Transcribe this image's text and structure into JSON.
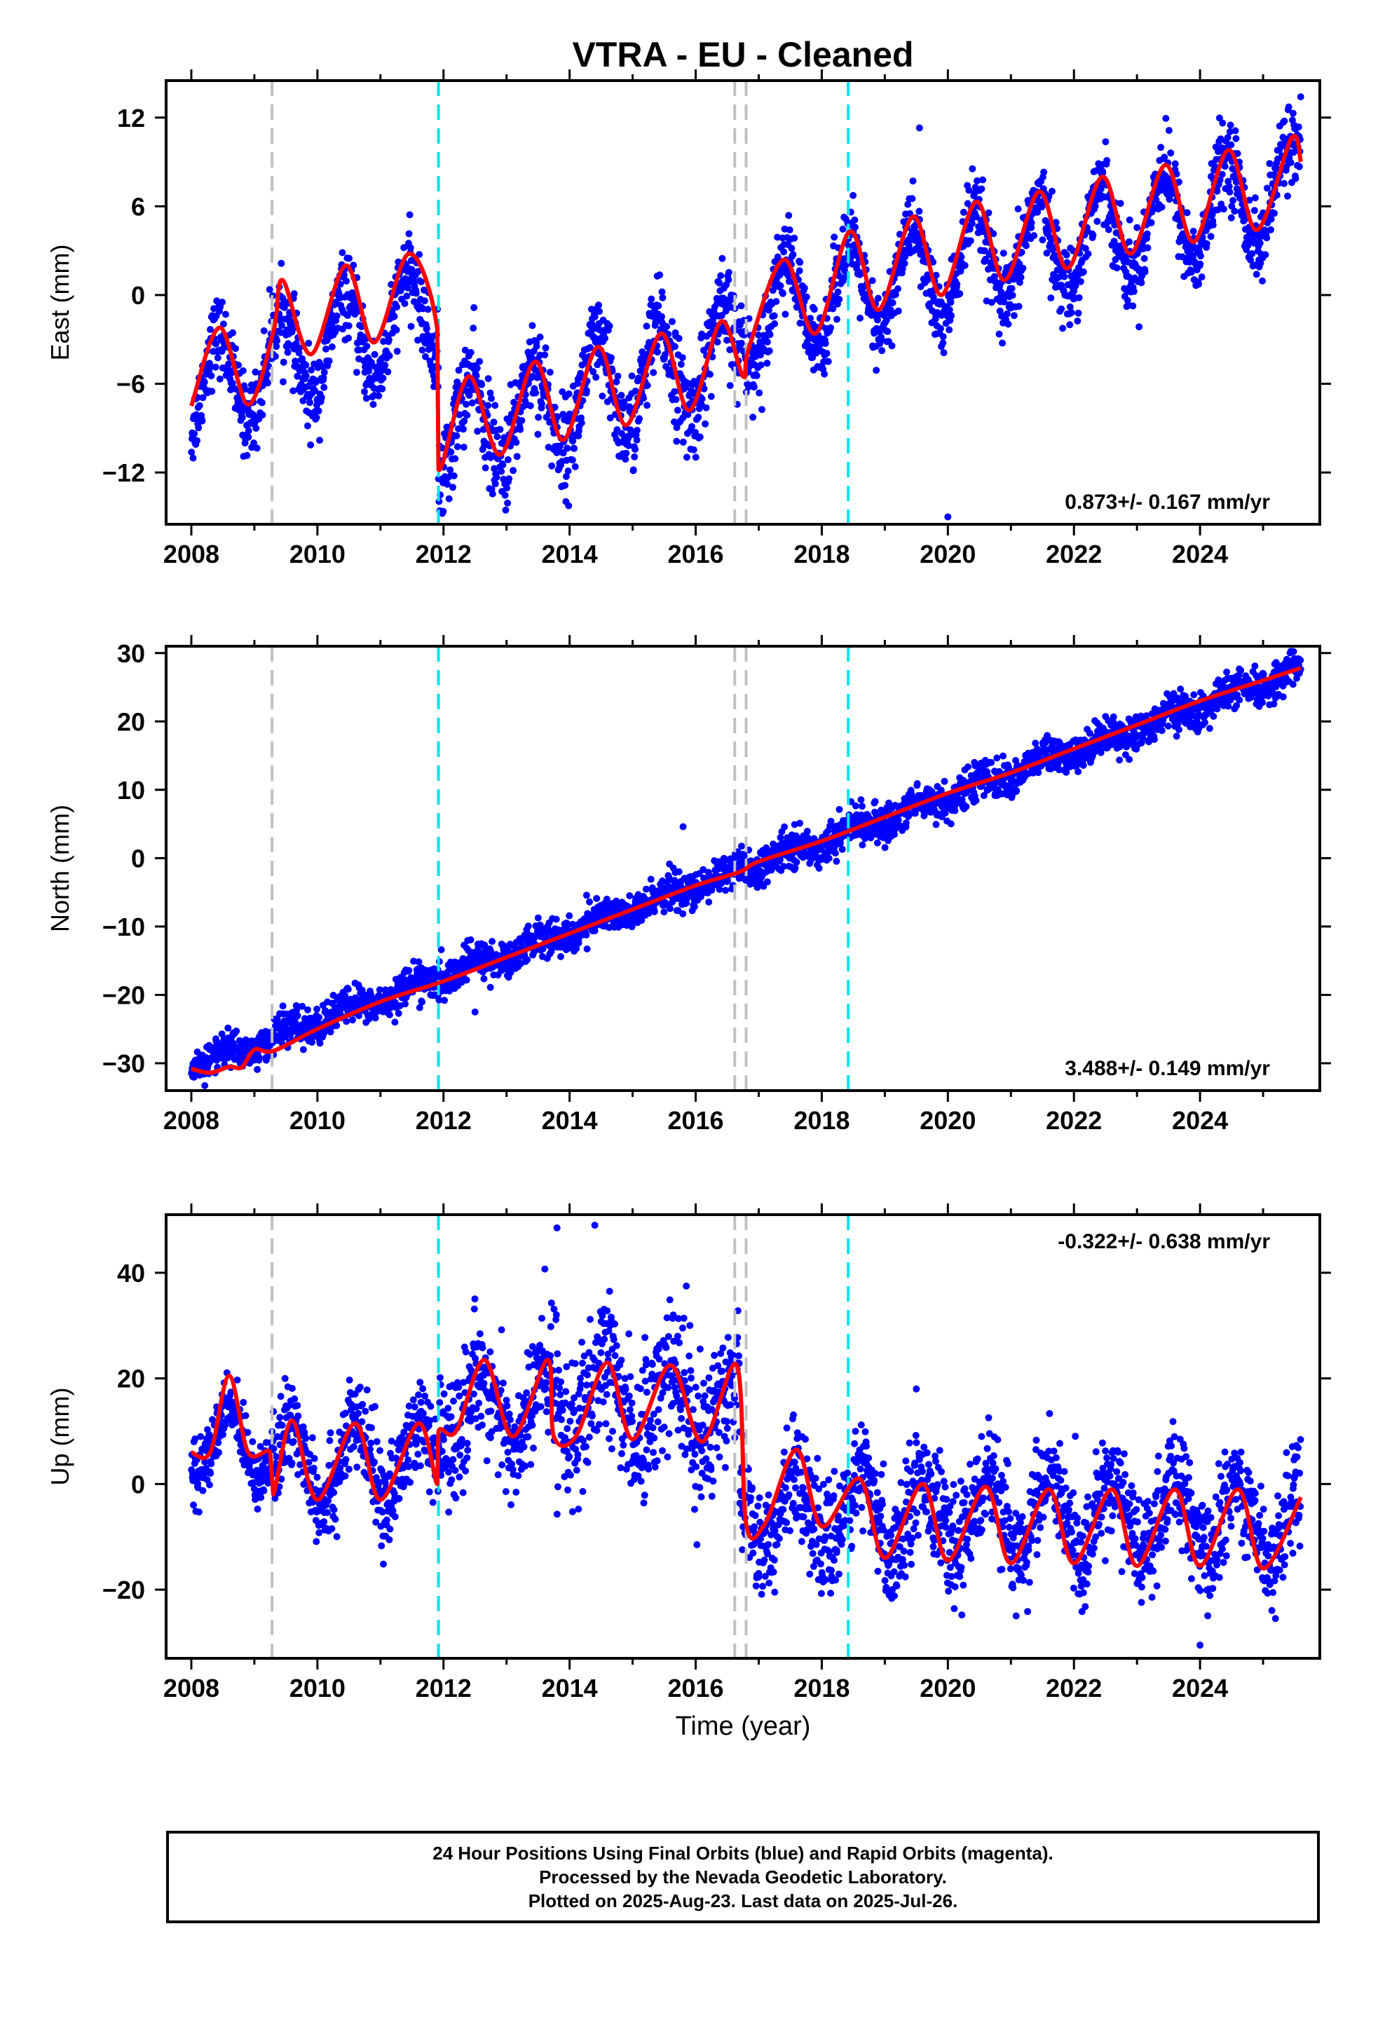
{
  "title": "VTRA  - EU - Cleaned",
  "x_axis_label": "Time (year)",
  "x_ticks": [
    "2008",
    "2010",
    "2012",
    "2014",
    "2016",
    "2018",
    "2020",
    "2022",
    "2024"
  ],
  "colors": {
    "data_points": "#0000ff",
    "model_fit": "#ff0000",
    "equipment_change": "#c0c0c0",
    "earthquake_event": "#00e5ee"
  },
  "caption": {
    "line1": "24 Hour Positions Using Final Orbits (blue) and Rapid Orbits (magenta).",
    "line2": "Processed by the Nevada Geodetic Laboratory.",
    "line3": "Plotted on 2025-Aug-23. Last data on 2025-Jul-26."
  },
  "chart_data": [
    {
      "type": "scatter",
      "panel": "east",
      "ylabel": "East (mm)",
      "xlim": [
        2007.6,
        2025.9
      ],
      "ylim": [
        -15.5,
        14.5
      ],
      "yticks": [
        -12,
        -6,
        0,
        6,
        12
      ],
      "rate_label": "0.873+/- 0.167 mm/yr",
      "rate_position": "bottom-right",
      "vertical_lines": {
        "gray_dashed": [
          2009.28,
          2016.62,
          2016.8
        ],
        "cyan_dashed": [
          2011.92,
          2018.42
        ]
      },
      "series": [
        {
          "style": "points",
          "trend_segments": [
            {
              "x0": 2008.0,
              "x1": 2011.92,
              "y0": -6.5,
              "y1": -1.0,
              "amplitude": 3.2,
              "peak_phase": 0.42,
              "scatter": 1.3
            },
            {
              "x0": 2011.92,
              "x1": 2016.7,
              "y0": -9.5,
              "y1": -4.0,
              "amplitude": 3.2,
              "peak_phase": 0.42,
              "scatter": 1.6
            },
            {
              "x0": 2016.7,
              "x1": 2025.6,
              "y0": -1.5,
              "y1": 7.3,
              "amplitude": 3.3,
              "peak_phase": 0.42,
              "scatter": 1.3
            }
          ],
          "outliers": [
            [
              2020.0,
              -15.0
            ],
            [
              2019.55,
              11.3
            ]
          ]
        },
        {
          "style": "line",
          "points": [
            [
              2008.0,
              -7.5
            ],
            [
              2008.45,
              -2.2
            ],
            [
              2008.9,
              -7.4
            ],
            [
              2009.3,
              -2.5
            ],
            [
              2009.45,
              1.0
            ],
            [
              2009.9,
              -4.0
            ],
            [
              2010.45,
              2.0
            ],
            [
              2010.9,
              -3.2
            ],
            [
              2011.45,
              2.8
            ],
            [
              2011.9,
              -2.3
            ],
            [
              2011.92,
              -11.8
            ],
            [
              2012.4,
              -5.5
            ],
            [
              2012.9,
              -10.8
            ],
            [
              2013.45,
              -4.5
            ],
            [
              2013.9,
              -9.8
            ],
            [
              2014.45,
              -3.5
            ],
            [
              2014.9,
              -8.8
            ],
            [
              2015.45,
              -2.6
            ],
            [
              2015.9,
              -7.8
            ],
            [
              2016.4,
              -1.8
            ],
            [
              2016.75,
              -5.5
            ],
            [
              2016.85,
              -3.5
            ],
            [
              2017.4,
              2.4
            ],
            [
              2017.9,
              -2.6
            ],
            [
              2018.45,
              4.3
            ],
            [
              2018.9,
              -1.0
            ],
            [
              2019.45,
              5.3
            ],
            [
              2019.9,
              0.0
            ],
            [
              2020.45,
              6.3
            ],
            [
              2020.9,
              1.0
            ],
            [
              2021.45,
              7.0
            ],
            [
              2021.9,
              1.8
            ],
            [
              2022.45,
              8.0
            ],
            [
              2022.9,
              2.8
            ],
            [
              2023.45,
              8.8
            ],
            [
              2023.9,
              3.6
            ],
            [
              2024.45,
              9.8
            ],
            [
              2024.9,
              4.4
            ],
            [
              2025.45,
              10.6
            ],
            [
              2025.6,
              9.0
            ]
          ]
        }
      ]
    },
    {
      "type": "scatter",
      "panel": "north",
      "ylabel": "North (mm)",
      "xlim": [
        2007.6,
        2025.9
      ],
      "ylim": [
        -34,
        31
      ],
      "yticks": [
        -30,
        -20,
        -10,
        0,
        10,
        20,
        30
      ],
      "rate_label": "3.488+/- 0.149 mm/yr",
      "rate_position": "bottom-right",
      "vertical_lines": {
        "gray_dashed": [
          2009.28,
          2016.62,
          2016.8
        ],
        "cyan_dashed": [
          2011.92,
          2018.42
        ]
      },
      "series": [
        {
          "style": "points",
          "trend_segments": [
            {
              "x0": 2008.0,
              "x1": 2025.6,
              "y0": -30.5,
              "y1": 27.5,
              "amplitude": 0.9,
              "peak_phase": 0.5,
              "scatter": 1.3
            }
          ],
          "outliers": [
            [
              2015.8,
              4.6
            ],
            [
              2012.5,
              -22.5
            ]
          ]
        },
        {
          "style": "line",
          "points": [
            [
              2008.0,
              -30.8
            ],
            [
              2008.3,
              -31.4
            ],
            [
              2008.6,
              -30.5
            ],
            [
              2008.8,
              -30.6
            ],
            [
              2009.0,
              -28.0
            ],
            [
              2009.3,
              -28.2
            ],
            [
              2010.0,
              -25.0
            ],
            [
              2011.0,
              -21.0
            ],
            [
              2012.0,
              -18.0
            ],
            [
              2013.0,
              -14.5
            ],
            [
              2014.0,
              -11.0
            ],
            [
              2015.0,
              -7.5
            ],
            [
              2016.0,
              -4.0
            ],
            [
              2016.7,
              -2.0
            ],
            [
              2017.0,
              -0.5
            ],
            [
              2018.0,
              2.5
            ],
            [
              2019.0,
              6.0
            ],
            [
              2020.0,
              9.5
            ],
            [
              2021.0,
              12.5
            ],
            [
              2022.0,
              16.0
            ],
            [
              2023.0,
              19.5
            ],
            [
              2024.0,
              23.0
            ],
            [
              2025.0,
              26.0
            ],
            [
              2025.6,
              27.8
            ]
          ]
        }
      ]
    },
    {
      "type": "scatter",
      "panel": "up",
      "ylabel": "Up (mm)",
      "xlim": [
        2007.6,
        2025.9
      ],
      "ylim": [
        -33,
        51
      ],
      "yticks": [
        -20,
        0,
        20,
        40
      ],
      "rate_label": "-0.322+/- 0.638 mm/yr",
      "rate_position": "top-right",
      "vertical_lines": {
        "gray_dashed": [
          2009.28,
          2016.62,
          2016.8
        ],
        "cyan_dashed": [
          2011.92,
          2018.42
        ]
      },
      "series": [
        {
          "style": "points",
          "trend_segments": [
            {
              "x0": 2008.0,
              "x1": 2009.28,
              "y0": 8.0,
              "y1": 8.0,
              "amplitude": 6.0,
              "peak_phase": 0.6,
              "scatter": 3.0
            },
            {
              "x0": 2009.28,
              "x1": 2011.92,
              "y0": 4.0,
              "y1": 4.0,
              "amplitude": 7.0,
              "peak_phase": 0.6,
              "scatter": 4.5
            },
            {
              "x0": 2011.92,
              "x1": 2013.7,
              "y0": 14.0,
              "y1": 14.0,
              "amplitude": 7.0,
              "peak_phase": 0.6,
              "scatter": 5.5
            },
            {
              "x0": 2013.7,
              "x1": 2016.7,
              "y0": 16.0,
              "y1": 15.0,
              "amplitude": 7.0,
              "peak_phase": 0.6,
              "scatter": 7.0
            },
            {
              "x0": 2016.7,
              "x1": 2025.6,
              "y0": -5.0,
              "y1": -7.0,
              "amplitude": 7.0,
              "peak_phase": 0.6,
              "scatter": 5.0
            }
          ],
          "outliers": [
            [
              2014.4,
              49.0
            ],
            [
              2013.8,
              48.5
            ],
            [
              2019.5,
              18.0
            ],
            [
              2024.0,
              -30.5
            ]
          ]
        },
        {
          "style": "line",
          "points": [
            [
              2008.0,
              6.0
            ],
            [
              2008.3,
              6.0
            ],
            [
              2008.6,
              20.5
            ],
            [
              2008.9,
              6.0
            ],
            [
              2009.25,
              6.0
            ],
            [
              2009.3,
              -2.0
            ],
            [
              2009.6,
              12.0
            ],
            [
              2010.0,
              -3.0
            ],
            [
              2010.6,
              11.5
            ],
            [
              2011.0,
              -3.0
            ],
            [
              2011.6,
              11.5
            ],
            [
              2011.9,
              0.0
            ],
            [
              2011.92,
              10.0
            ],
            [
              2012.2,
              10.0
            ],
            [
              2012.65,
              23.5
            ],
            [
              2013.1,
              9.0
            ],
            [
              2013.65,
              23.5
            ],
            [
              2013.75,
              9.0
            ],
            [
              2014.1,
              9.0
            ],
            [
              2014.6,
              23.0
            ],
            [
              2015.0,
              8.5
            ],
            [
              2015.6,
              22.5
            ],
            [
              2016.1,
              8.0
            ],
            [
              2016.65,
              22.5
            ],
            [
              2016.8,
              -7.5
            ],
            [
              2017.1,
              -7.5
            ],
            [
              2017.6,
              6.5
            ],
            [
              2018.0,
              -8.0
            ],
            [
              2018.6,
              1.0
            ],
            [
              2019.0,
              -14.0
            ],
            [
              2019.6,
              0.0
            ],
            [
              2020.0,
              -14.5
            ],
            [
              2020.6,
              -0.5
            ],
            [
              2021.0,
              -15.0
            ],
            [
              2021.6,
              -1.0
            ],
            [
              2022.0,
              -15.0
            ],
            [
              2022.6,
              -1.0
            ],
            [
              2023.0,
              -15.5
            ],
            [
              2023.6,
              -1.0
            ],
            [
              2024.0,
              -15.5
            ],
            [
              2024.6,
              -1.0
            ],
            [
              2025.0,
              -16.0
            ],
            [
              2025.6,
              -2.5
            ]
          ]
        }
      ]
    }
  ]
}
